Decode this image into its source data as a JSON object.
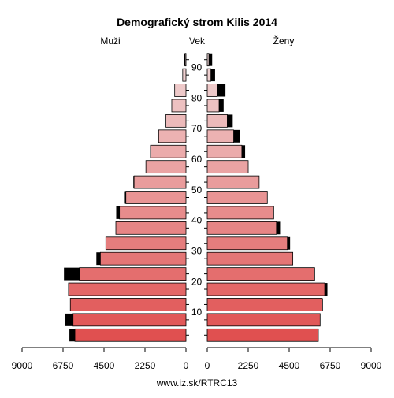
{
  "chart_data": {
    "type": "bar",
    "orientation": "horizontal-pyramid",
    "title": "Demografický strom Kilis 2014",
    "left_label": "Muži",
    "center_label": "Vek",
    "right_label": "Ženy",
    "footer": "www.iz.sk/RTRC13",
    "age_ticks": [
      "10",
      "20",
      "30",
      "40",
      "50",
      "60",
      "70",
      "80",
      "90"
    ],
    "x_ticks_left": [
      "9000",
      "6750",
      "4500",
      "2250",
      "0"
    ],
    "x_ticks_right": [
      "0",
      "2250",
      "4500",
      "6750",
      "9000"
    ],
    "xlim": [
      0,
      9000
    ],
    "age_groups": [
      "0-4",
      "5-9",
      "10-14",
      "15-19",
      "20-24",
      "25-29",
      "30-34",
      "35-39",
      "40-44",
      "45-49",
      "50-54",
      "55-59",
      "60-64",
      "65-69",
      "70-74",
      "75-79",
      "80-84",
      "85-89",
      "90-94"
    ],
    "series": [
      {
        "name": "Muži",
        "values": [
          6100,
          6200,
          6350,
          6450,
          5850,
          4700,
          4400,
          3850,
          3650,
          3300,
          2850,
          2200,
          1950,
          1500,
          1100,
          780,
          620,
          180,
          50
        ],
        "excess": [
          300,
          450,
          0,
          0,
          850,
          220,
          0,
          0,
          180,
          100,
          40,
          0,
          0,
          0,
          0,
          0,
          0,
          0,
          50
        ]
      },
      {
        "name": "Ženy",
        "values": [
          6100,
          6200,
          6300,
          6450,
          5900,
          4700,
          4400,
          3800,
          3650,
          3300,
          2850,
          2250,
          1900,
          1450,
          1100,
          650,
          550,
          200,
          90
        ],
        "excess": [
          0,
          0,
          50,
          150,
          0,
          0,
          150,
          200,
          0,
          0,
          0,
          0,
          180,
          350,
          300,
          250,
          450,
          230,
          180
        ]
      }
    ],
    "colors": {
      "excess": "#000000",
      "male_base": "#e05050",
      "female_base": "#e05050",
      "light": "#f0d8d8"
    }
  }
}
